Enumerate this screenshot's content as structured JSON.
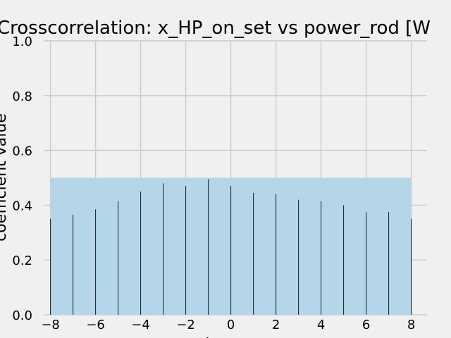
{
  "chart_data": {
    "type": "bar",
    "title": "Crosscorrelation: x_HP_on_set vs power_rod [W",
    "xlabel": "lag",
    "ylabel": "coefficient value",
    "xlim": [
      -8.3,
      8.7
    ],
    "ylim": [
      0,
      1.0
    ],
    "x_ticks": [
      "−8",
      "−6",
      "−4",
      "−2",
      "0",
      "2",
      "4",
      "6",
      "8"
    ],
    "x_tick_values": [
      -8,
      -6,
      -4,
      -2,
      0,
      2,
      4,
      6,
      8
    ],
    "y_ticks": [
      "0.0",
      "0.2",
      "0.4",
      "0.6",
      "0.8",
      "1.0"
    ],
    "y_tick_values": [
      0.0,
      0.2,
      0.4,
      0.6,
      0.8,
      1.0
    ],
    "grid": true,
    "x": [
      -8,
      -7,
      -6,
      -5,
      -4,
      -3,
      -2,
      -1,
      0,
      1,
      2,
      3,
      4,
      5,
      6,
      7,
      8
    ],
    "values": [
      0.35,
      0.365,
      0.385,
      0.415,
      0.45,
      0.48,
      0.47,
      0.495,
      0.47,
      0.445,
      0.44,
      0.42,
      0.415,
      0.4,
      0.375,
      0.375,
      0.35
    ],
    "confidence_band": {
      "x_range": [
        -8,
        8
      ],
      "y_range": [
        0,
        0.5
      ],
      "color": "#b4d6e8"
    },
    "bar_color": "#1a1a1a",
    "grid_color": "#cbcbcb",
    "background_color": "#f0f0f0"
  }
}
